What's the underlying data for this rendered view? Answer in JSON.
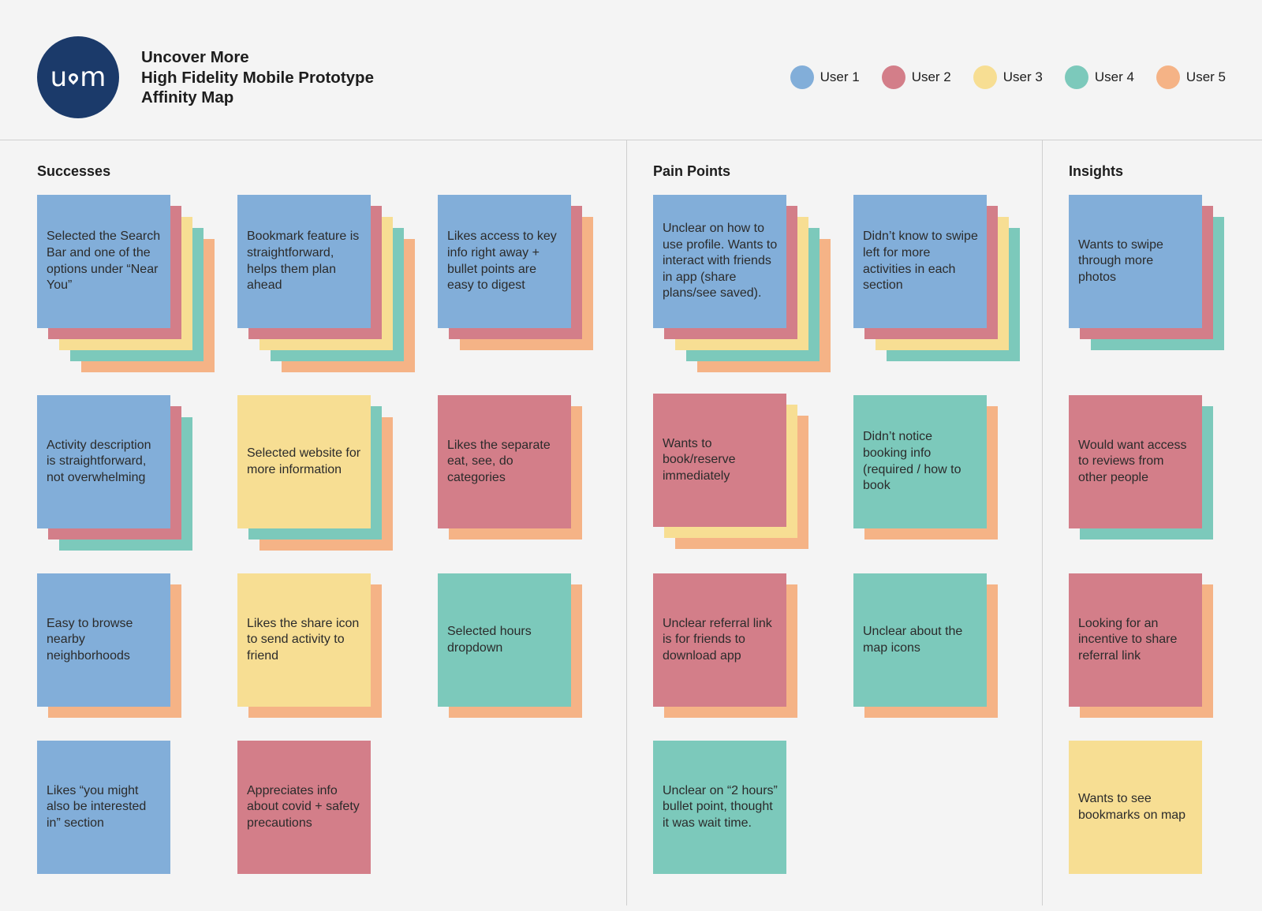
{
  "header": {
    "logo_text": "u m",
    "title_line1": "Uncover More",
    "title_line2": "High Fidelity Mobile Prototype",
    "title_line3": "Affinity Map"
  },
  "legend": [
    {
      "label": "User 1",
      "color": "#82aed9"
    },
    {
      "label": "User 2",
      "color": "#d37e89"
    },
    {
      "label": "User 3",
      "color": "#f7de93"
    },
    {
      "label": "User 4",
      "color": "#7cc9bb"
    },
    {
      "label": "User 5",
      "color": "#f5b386"
    }
  ],
  "sections": {
    "successes": "Successes",
    "pain_points": "Pain Points",
    "insights": "Insights"
  },
  "notes": {
    "s1": "Selected the Search Bar and one of the options under “Near You”",
    "s2": "Bookmark feature is straightforward, helps them plan ahead",
    "s3": "Likes access to key info right away + bullet points are easy to digest",
    "s4": "Activity description is straightforward, not overwhelming",
    "s5": "Selected website for more information",
    "s6": "Likes the separate eat, see, do categories",
    "s7": "Easy to browse nearby neighborhoods",
    "s8": "Likes the share icon to send activity to friend",
    "s9": "Selected hours dropdown",
    "s10": "Likes “you might also be interested in” section",
    "s11": "Appreciates info about covid + safety precautions",
    "p1": "Unclear on how to use profile. Wants to interact with friends in app (share plans/see saved).",
    "p2": "Didn’t know to swipe left for more activities in each section",
    "p3": "Wants to book/reserve immediately",
    "p4": "Didn’t notice booking info (required / how to book",
    "p5": "Unclear referral link is for friends to download app",
    "p6": "Unclear about the map icons",
    "p7": "Unclear on “2 hours” bullet point, thought it was wait time.",
    "i1": "Wants to swipe through more photos",
    "i2": "Would want access to reviews from other people",
    "i3": "Looking for an incentive to share referral link",
    "i4": "Wants to see bookmarks on map"
  }
}
